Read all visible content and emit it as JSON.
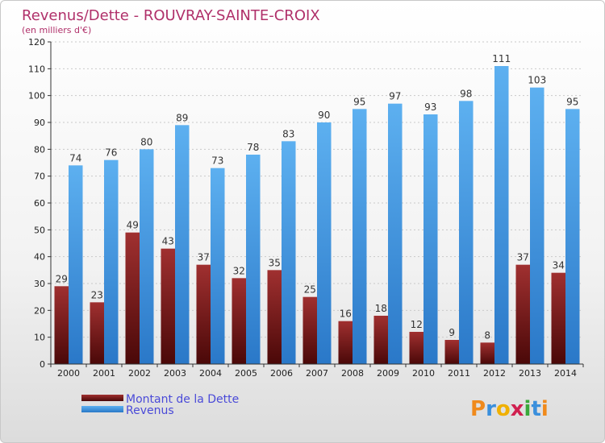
{
  "chart_data": {
    "type": "bar",
    "title": "Revenus/Dette - ROUVRAY-SAINTE-CROIX",
    "subtitle": "(en milliers d'€)",
    "categories": [
      "2000",
      "2001",
      "2002",
      "2003",
      "2004",
      "2005",
      "2006",
      "2007",
      "2008",
      "2009",
      "2010",
      "2011",
      "2012",
      "2013",
      "2014"
    ],
    "series": [
      {
        "name": "Montant de la Dette",
        "color": "#7a1a1a",
        "values": [
          29,
          23,
          49,
          43,
          37,
          32,
          35,
          25,
          16,
          18,
          12,
          9,
          8,
          37,
          34
        ]
      },
      {
        "name": "Revenus",
        "color": "#3a8fdc",
        "values": [
          74,
          76,
          80,
          89,
          73,
          78,
          83,
          90,
          95,
          97,
          93,
          98,
          111,
          103,
          95
        ]
      }
    ],
    "ylim": [
      0,
      120
    ],
    "ytick_step": 10,
    "grid": "horizontal dashed",
    "legend_position": "bottom-left"
  },
  "logo": {
    "text": "Proxiti"
  }
}
